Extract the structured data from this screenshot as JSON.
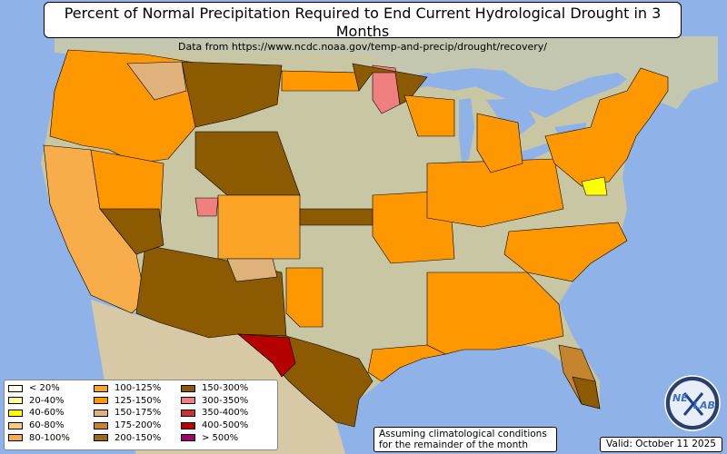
{
  "title": "Percent of Normal Precipitation Required to End Current Hydrological Drought in 3 Months",
  "subtitle": "Data from https://www.ncdc.noaa.gov/temp-and-precip/drought/recovery/",
  "legend": [
    {
      "label": "< 20%",
      "color": "#ffffe0"
    },
    {
      "label": "20-40%",
      "color": "#ffff99"
    },
    {
      "label": "40-60%",
      "color": "#ffff00"
    },
    {
      "label": "60-80%",
      "color": "#f9c97e"
    },
    {
      "label": "80-100%",
      "color": "#f9ad4a"
    },
    {
      "label": "100-125%",
      "color": "#fca425"
    },
    {
      "label": "125-150%",
      "color": "#ff9800"
    },
    {
      "label": "150-175%",
      "color": "#deb27a"
    },
    {
      "label": "175-200%",
      "color": "#c6842f"
    },
    {
      "label": "200-150%",
      "color": "#9b6a14"
    },
    {
      "label": "150-300%",
      "color": "#8c5a00"
    },
    {
      "label": "300-350%",
      "color": "#f08080"
    },
    {
      "label": "350-400%",
      "color": "#c83232"
    },
    {
      "label": "400-500%",
      "color": "#b40000"
    },
    {
      "label": "> 500%",
      "color": "#a0006e"
    }
  ],
  "note": [
    "Assuming climatological conditions",
    "for the remainder of the month"
  ],
  "valid": "Valid: October 11 2025",
  "logo_text": [
    "NE",
    "LAB"
  ],
  "colors": {
    "water": "#8fb3e8",
    "land": "#c9c6a4",
    "forest": "#9fb58a",
    "canada": "#c4c7b0",
    "mexico": "#d8c9a6"
  }
}
